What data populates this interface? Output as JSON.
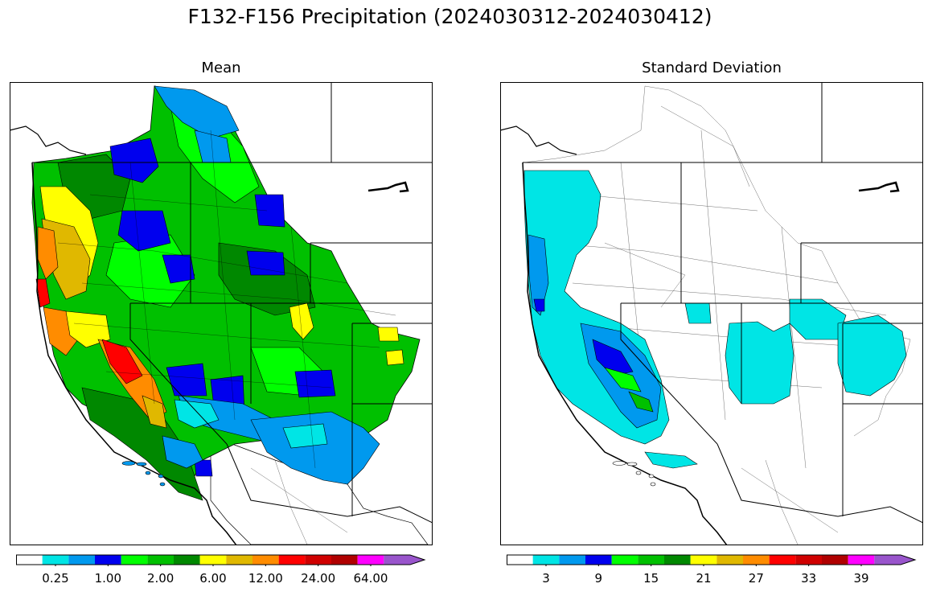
{
  "figure": {
    "title": "F132-F156 Precipitation (2024030312-2024030412)"
  },
  "panels": {
    "mean": {
      "title": "Mean",
      "colorbar": {
        "colors": [
          "#ffffff",
          "#00e5e5",
          "#0099ee",
          "#0000ee",
          "#00ff00",
          "#00c000",
          "#008800",
          "#ffff00",
          "#e0b800",
          "#ff8c00",
          "#ff0000",
          "#d00000",
          "#b00000",
          "#ff00ff",
          "#9955cc"
        ],
        "tick_labels": [
          "0.25",
          "1.00",
          "2.00",
          "6.00",
          "12.00",
          "24.00",
          "64.00"
        ],
        "extend": "max"
      }
    },
    "std": {
      "title": "Standard Deviation",
      "colorbar": {
        "colors": [
          "#ffffff",
          "#00e5e5",
          "#0099ee",
          "#0000ee",
          "#00ff00",
          "#00c000",
          "#008800",
          "#ffff00",
          "#e0b800",
          "#ff8c00",
          "#ff0000",
          "#d00000",
          "#b00000",
          "#ff00ff",
          "#9955cc"
        ],
        "tick_labels": [
          "3",
          "9",
          "15",
          "21",
          "27",
          "33",
          "39"
        ],
        "extend": "max"
      }
    }
  }
}
